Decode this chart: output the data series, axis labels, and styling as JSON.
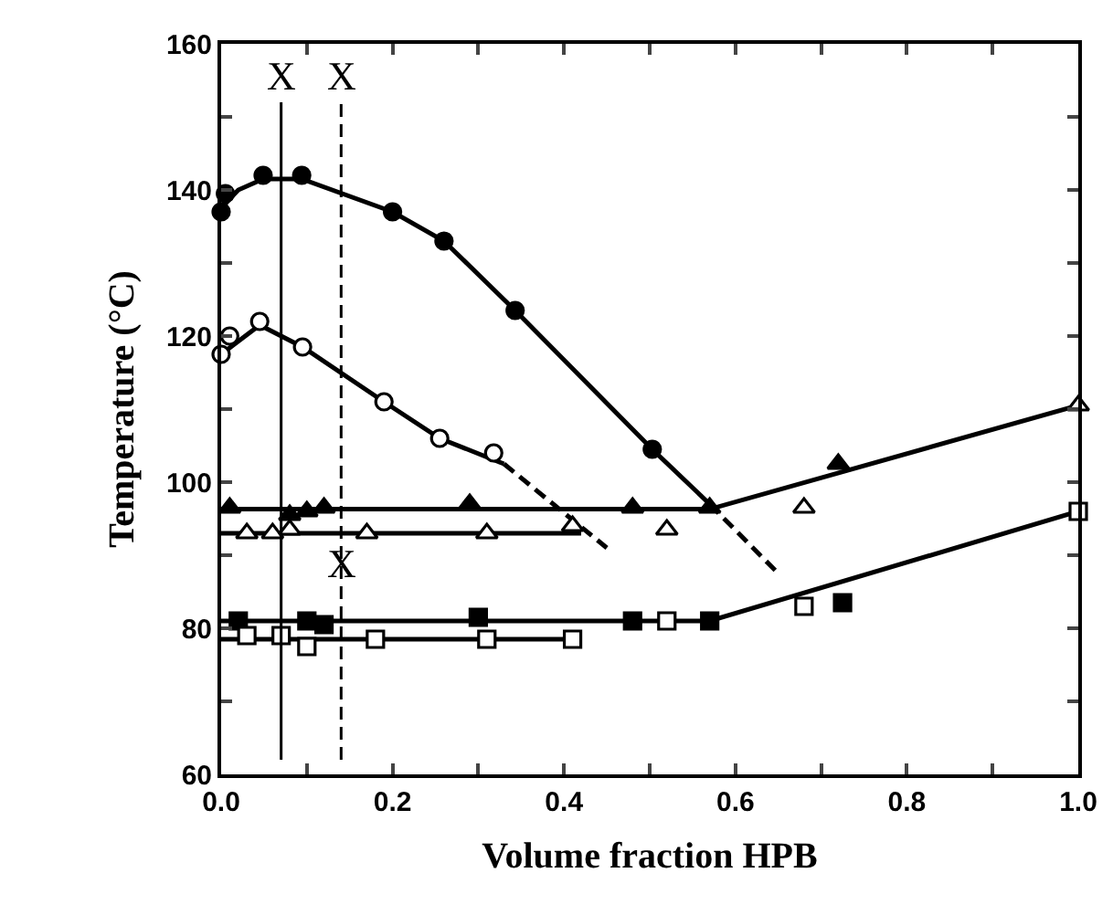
{
  "chart_data": {
    "type": "scatter",
    "xlabel": "Volume fraction HPB",
    "ylabel": "Temperature (°C)",
    "xlim": [
      0,
      1
    ],
    "ylim": [
      60,
      160
    ],
    "xticks": [
      {
        "value": 0,
        "label": "0.0"
      },
      {
        "value": 0.1,
        "label": null
      },
      {
        "value": 0.2,
        "label": "0.2"
      },
      {
        "value": 0.3,
        "label": null
      },
      {
        "value": 0.4,
        "label": "0.4"
      },
      {
        "value": 0.5,
        "label": null
      },
      {
        "value": 0.6,
        "label": "0.6"
      },
      {
        "value": 0.7,
        "label": null
      },
      {
        "value": 0.8,
        "label": "0.8"
      },
      {
        "value": 0.9,
        "label": null
      },
      {
        "value": 1,
        "label": "1.0"
      }
    ],
    "yticks": [
      60,
      {
        "value": 70,
        "label": null
      },
      80,
      {
        "value": 90,
        "label": null
      },
      100,
      {
        "value": 110,
        "label": null
      },
      120,
      {
        "value": 130,
        "label": null
      },
      140,
      {
        "value": 150,
        "label": null
      },
      160
    ],
    "grid": false,
    "series": [
      {
        "type": "scatter",
        "marker": "circle",
        "color": "#000000",
        "x": [
          0,
          0.005,
          0.049,
          0.094,
          0.2,
          0.26,
          0.343,
          0.503
        ],
        "values": [
          137,
          139.5,
          142,
          142,
          137,
          133,
          123.5,
          104.5
        ]
      },
      {
        "type": "scatter",
        "marker": "circle",
        "color": "#ffffff",
        "x": [
          0,
          0.01,
          0.045,
          0.095,
          0.19,
          0.255,
          0.318
        ],
        "values": [
          117.5,
          120,
          122,
          118.5,
          111,
          106,
          104
        ]
      },
      {
        "type": "scatter",
        "marker": "triangle",
        "color": "#000000",
        "x": [
          0.01,
          0.08,
          0.1,
          0.12,
          0.29,
          0.48,
          0.57,
          0.72
        ],
        "values": [
          96.5,
          95.5,
          96,
          96.5,
          97,
          96.5,
          96.5,
          102.5
        ]
      },
      {
        "type": "scatter",
        "marker": "triangle",
        "color": "#ffffff",
        "x": [
          0.03,
          0.06,
          0.08,
          0.17,
          0.31,
          0.41,
          0.52,
          0.68,
          1
        ],
        "values": [
          93,
          93,
          93.5,
          93,
          93,
          94,
          93.5,
          96.5,
          110.5
        ]
      },
      {
        "type": "scatter",
        "marker": "square",
        "color": "#000000",
        "x": [
          0.02,
          0.1,
          0.12,
          0.3,
          0.48,
          0.57,
          0.725
        ],
        "values": [
          81,
          81,
          80.5,
          81.5,
          81,
          81,
          83.5
        ]
      },
      {
        "type": "scatter",
        "marker": "square",
        "color": "#ffffff",
        "x": [
          0.03,
          0.07,
          0.1,
          0.18,
          0.31,
          0.41,
          0.52,
          0.68,
          1
        ],
        "values": [
          79,
          79,
          77.5,
          78.5,
          78.5,
          78.5,
          81,
          83,
          96
        ]
      },
      {
        "type": "line",
        "line_style": "solid",
        "color": "#000000",
        "x": [
          0,
          0.02,
          0.049,
          0.094,
          0.2,
          0.26,
          0.343,
          0.503,
          0.57
        ],
        "values": [
          137.5,
          140,
          141.5,
          141.5,
          137,
          133,
          123.5,
          104.5,
          97
        ]
      },
      {
        "type": "line",
        "line_style": "dashed",
        "color": "#000000",
        "x": [
          0.57,
          0.65
        ],
        "values": [
          97,
          87.5
        ]
      },
      {
        "type": "line",
        "line_style": "solid",
        "color": "#000000",
        "x": [
          0,
          0.045,
          0.095,
          0.19,
          0.255,
          0.33
        ],
        "values": [
          117.5,
          121.5,
          118.5,
          111,
          106,
          102.5
        ]
      },
      {
        "type": "line",
        "line_style": "dashed",
        "color": "#000000",
        "x": [
          0.33,
          0.45
        ],
        "values": [
          102.5,
          91
        ]
      },
      {
        "type": "line",
        "line_style": "solid",
        "color": "#000000",
        "x": [
          0,
          0.57,
          1
        ],
        "values": [
          96.3,
          96.3,
          110.5
        ]
      },
      {
        "type": "line",
        "line_style": "solid",
        "color": "#000000",
        "x": [
          0,
          0.42
        ],
        "values": [
          93,
          93
        ]
      },
      {
        "type": "line",
        "line_style": "solid",
        "color": "#000000",
        "x": [
          0,
          0.57,
          1
        ],
        "values": [
          81,
          81,
          96
        ]
      },
      {
        "type": "line",
        "line_style": "solid",
        "color": "#000000",
        "x": [
          0,
          0.41
        ],
        "values": [
          78.5,
          78.5
        ]
      }
    ],
    "ref_lines": [
      {
        "axis": "x",
        "value": 0.07,
        "label": "X",
        "line_style": "solid"
      },
      {
        "axis": "x",
        "value": 0.14,
        "label": "X",
        "line_style": "dashed"
      }
    ],
    "annotations": [
      {
        "text": "X",
        "x": 0.14,
        "y": 89
      }
    ]
  }
}
